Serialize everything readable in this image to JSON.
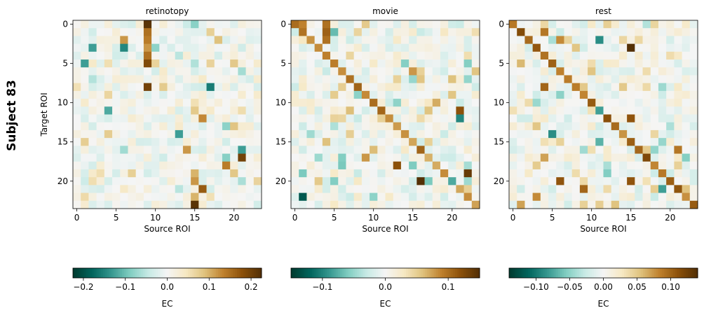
{
  "figure": {
    "suptitle": "Subject 83"
  },
  "colors": {
    "cmap": [
      "#003c30",
      "#01665e",
      "#35978f",
      "#80cdc1",
      "#c7eae5",
      "#f5f5f5",
      "#f6e8c3",
      "#dfc27d",
      "#bf812d",
      "#8c510a",
      "#543005"
    ]
  },
  "chart_data": [
    {
      "type": "heatmap",
      "title": "retinotopy",
      "xlabel": "Source ROI",
      "ylabel": "Target ROI",
      "xticks": [
        0,
        5,
        10,
        15,
        20
      ],
      "yticks": [
        0,
        5,
        10,
        15,
        20
      ],
      "n_rois": 24,
      "vmin": -0.225,
      "vmax": 0.225,
      "colorbar": {
        "label": "EC",
        "ticks": [
          -0.2,
          -0.1,
          0.0,
          0.1,
          0.2
        ],
        "tick_labels": [
          "−0.2",
          "−0.1",
          "0.0",
          "0.1",
          "0.2"
        ]
      },
      "seed": 83,
      "diag": 0.0,
      "noise": 0.035,
      "strong": [
        [
          0,
          9,
          0.22
        ],
        [
          1,
          9,
          0.15
        ],
        [
          2,
          9,
          0.14
        ],
        [
          3,
          9,
          0.12
        ],
        [
          4,
          9,
          0.15
        ],
        [
          5,
          9,
          0.19
        ],
        [
          8,
          9,
          0.2
        ],
        [
          2,
          6,
          0.12
        ],
        [
          3,
          2,
          -0.13
        ],
        [
          3,
          6,
          -0.15
        ],
        [
          5,
          1,
          -0.13
        ],
        [
          8,
          17,
          -0.16
        ],
        [
          11,
          4,
          -0.12
        ],
        [
          14,
          13,
          -0.13
        ],
        [
          16,
          21,
          -0.13
        ],
        [
          17,
          21,
          0.2
        ],
        [
          16,
          14,
          0.12
        ],
        [
          18,
          19,
          0.14
        ],
        [
          21,
          16,
          0.17
        ],
        [
          22,
          15,
          0.1
        ],
        [
          23,
          15,
          0.22
        ],
        [
          12,
          16,
          0.13
        ],
        [
          19,
          15,
          0.1
        ],
        [
          2,
          18,
          0.09
        ],
        [
          20,
          15,
          0.12
        ]
      ]
    },
    {
      "type": "heatmap",
      "title": "movie",
      "xlabel": "Source ROI",
      "ylabel": "",
      "xticks": [
        0,
        5,
        10,
        15,
        20
      ],
      "yticks": [
        0,
        5,
        10,
        15,
        20
      ],
      "n_rois": 24,
      "vmin": -0.15,
      "vmax": 0.15,
      "colorbar": {
        "label": "EC",
        "ticks": [
          -0.1,
          0.0,
          0.1
        ],
        "tick_labels": [
          "−0.1",
          "0.0",
          "0.1"
        ]
      },
      "seed": 191,
      "diag": 0.11,
      "noise": 0.025,
      "strong": [
        [
          0,
          1,
          0.09
        ],
        [
          0,
          4,
          0.1
        ],
        [
          1,
          4,
          0.11
        ],
        [
          2,
          4,
          0.1
        ],
        [
          1,
          5,
          -0.07
        ],
        [
          12,
          21,
          -0.1
        ],
        [
          11,
          21,
          0.12
        ],
        [
          19,
          22,
          0.14
        ],
        [
          22,
          1,
          -0.13
        ],
        [
          20,
          16,
          0.15
        ],
        [
          10,
          18,
          0.07
        ],
        [
          18,
          13,
          0.12
        ],
        [
          6,
          15,
          0.08
        ],
        [
          17,
          9,
          0.08
        ],
        [
          20,
          20,
          -0.08
        ]
      ]
    },
    {
      "type": "heatmap",
      "title": "rest",
      "xlabel": "Source ROI",
      "ylabel": "",
      "xticks": [
        0,
        5,
        10,
        15,
        20
      ],
      "yticks": [
        0,
        5,
        10,
        15,
        20
      ],
      "n_rois": 24,
      "vmin": -0.14,
      "vmax": 0.14,
      "colorbar": {
        "label": "EC",
        "ticks": [
          -0.1,
          -0.05,
          0.0,
          0.05,
          0.1
        ],
        "tick_labels": [
          "−0.10",
          "−0.05",
          "0.00",
          "0.05",
          "0.10"
        ]
      },
      "seed": 311,
      "diag": 0.12,
      "noise": 0.022,
      "strong": [
        [
          1,
          4,
          0.09
        ],
        [
          2,
          6,
          0.08
        ],
        [
          2,
          11,
          -0.09
        ],
        [
          3,
          15,
          0.14
        ],
        [
          5,
          1,
          0.06
        ],
        [
          8,
          4,
          0.1
        ],
        [
          11,
          11,
          -0.08
        ],
        [
          12,
          15,
          0.11
        ],
        [
          14,
          5,
          -0.09
        ],
        [
          15,
          11,
          -0.07
        ],
        [
          16,
          21,
          0.09
        ],
        [
          17,
          4,
          0.07
        ],
        [
          20,
          6,
          0.11
        ],
        [
          20,
          15,
          0.11
        ],
        [
          21,
          9,
          0.1
        ],
        [
          21,
          19,
          -0.08
        ],
        [
          22,
          3,
          0.08
        ],
        [
          23,
          1,
          0.07
        ]
      ]
    }
  ]
}
